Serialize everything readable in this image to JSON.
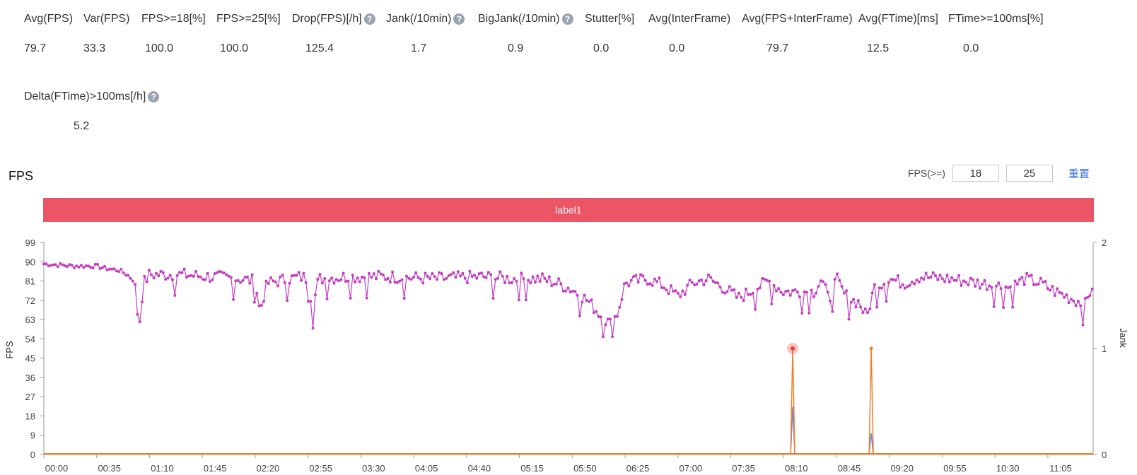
{
  "metrics": [
    {
      "label": "Avg(FPS)",
      "value": "79.7",
      "help": false
    },
    {
      "label": "Var(FPS)",
      "value": "33.3",
      "help": false
    },
    {
      "label": "FPS>=18[%]",
      "value": "100.0",
      "help": false
    },
    {
      "label": "FPS>=25[%]",
      "value": "100.0",
      "help": false
    },
    {
      "label": "Drop(FPS)[/h]",
      "value": "125.4",
      "help": true
    },
    {
      "label": "Jank(/10min)",
      "value": "1.7",
      "help": true
    },
    {
      "label": "BigJank(/10min)",
      "value": "0.9",
      "help": true
    },
    {
      "label": "Stutter[%]",
      "value": "0.0",
      "help": false
    },
    {
      "label": "Avg(InterFrame)",
      "value": "0.0",
      "help": false
    },
    {
      "label": "Avg(FPS+InterFrame)",
      "value": "79.7",
      "help": false
    },
    {
      "label": "Avg(FTime)[ms]",
      "value": "12.5",
      "help": false
    },
    {
      "label": "FTime>=100ms[%]",
      "value": "0.0",
      "help": false
    },
    {
      "label": "Delta(FTime)>100ms[/h]",
      "value": "5.2",
      "help": true
    }
  ],
  "help_glyph": "?",
  "section_title": "FPS",
  "filter": {
    "label": "FPS(>=)",
    "value1": "18",
    "value2": "25",
    "reset_label": "重置"
  },
  "label_bar": {
    "text": "label1",
    "color": "#eb5566"
  },
  "chart_data": {
    "type": "line",
    "y_left": {
      "label": "FPS",
      "ticks": [
        0,
        9,
        18,
        27,
        36,
        45,
        54,
        63,
        72,
        81,
        90,
        99
      ],
      "range": [
        0,
        99
      ]
    },
    "y_right": {
      "label": "Jank",
      "ticks": [
        0,
        1,
        2
      ],
      "range": [
        0,
        2
      ]
    },
    "x_ticks": [
      "00:00",
      "00:35",
      "01:10",
      "01:45",
      "02:20",
      "02:55",
      "03:30",
      "04:05",
      "04:40",
      "05:15",
      "05:50",
      "06:25",
      "07:00",
      "07:35",
      "08:10",
      "08:45",
      "09:20",
      "09:55",
      "10:30",
      "11:05"
    ],
    "x_range_minutes": [
      0,
      695
    ],
    "fps_series_color": "#c23fc0",
    "fps_keypoints": [
      [
        0,
        89
      ],
      [
        20,
        88
      ],
      [
        35,
        88
      ],
      [
        40,
        87
      ],
      [
        50,
        86
      ],
      [
        55,
        84
      ],
      [
        60,
        81
      ],
      [
        63,
        59
      ],
      [
        66,
        80
      ],
      [
        70,
        84
      ],
      [
        90,
        84
      ],
      [
        110,
        83
      ],
      [
        130,
        82
      ],
      [
        140,
        81
      ],
      [
        143,
        67
      ],
      [
        148,
        80
      ],
      [
        170,
        83
      ],
      [
        175,
        82
      ],
      [
        178,
        68
      ],
      [
        182,
        82
      ],
      [
        200,
        83
      ],
      [
        230,
        83
      ],
      [
        260,
        82
      ],
      [
        290,
        83
      ],
      [
        310,
        82
      ],
      [
        330,
        82
      ],
      [
        340,
        80
      ],
      [
        350,
        77
      ],
      [
        360,
        72
      ],
      [
        365,
        68
      ],
      [
        370,
        64
      ],
      [
        375,
        61
      ],
      [
        380,
        66
      ],
      [
        385,
        80
      ],
      [
        400,
        82
      ],
      [
        410,
        79
      ],
      [
        420,
        74
      ],
      [
        430,
        80
      ],
      [
        440,
        82
      ],
      [
        450,
        78
      ],
      [
        460,
        73
      ],
      [
        470,
        77
      ],
      [
        480,
        81
      ],
      [
        490,
        76
      ],
      [
        500,
        76
      ],
      [
        510,
        76
      ],
      [
        515,
        82
      ],
      [
        520,
        72
      ],
      [
        525,
        82
      ],
      [
        530,
        75
      ],
      [
        535,
        72
      ],
      [
        540,
        71
      ],
      [
        545,
        64
      ],
      [
        550,
        78
      ],
      [
        560,
        82
      ],
      [
        570,
        80
      ],
      [
        580,
        83
      ],
      [
        600,
        82
      ],
      [
        620,
        80
      ],
      [
        640,
        78
      ],
      [
        650,
        82
      ],
      [
        660,
        80
      ],
      [
        670,
        76
      ],
      [
        680,
        73
      ],
      [
        690,
        70
      ],
      [
        695,
        80
      ]
    ],
    "jank_orange": {
      "color": "#f07f2a",
      "spikes": [
        {
          "x": 496,
          "value": 1
        },
        {
          "x": 548,
          "value": 1
        }
      ]
    },
    "jank_blue": {
      "color": "#6a89d8",
      "spikes": [
        {
          "x": 496,
          "value": 0.45
        },
        {
          "x": 548,
          "value": 0.2
        }
      ]
    },
    "highlight": {
      "x": 496,
      "value": 1,
      "color": "#e8403a"
    }
  }
}
